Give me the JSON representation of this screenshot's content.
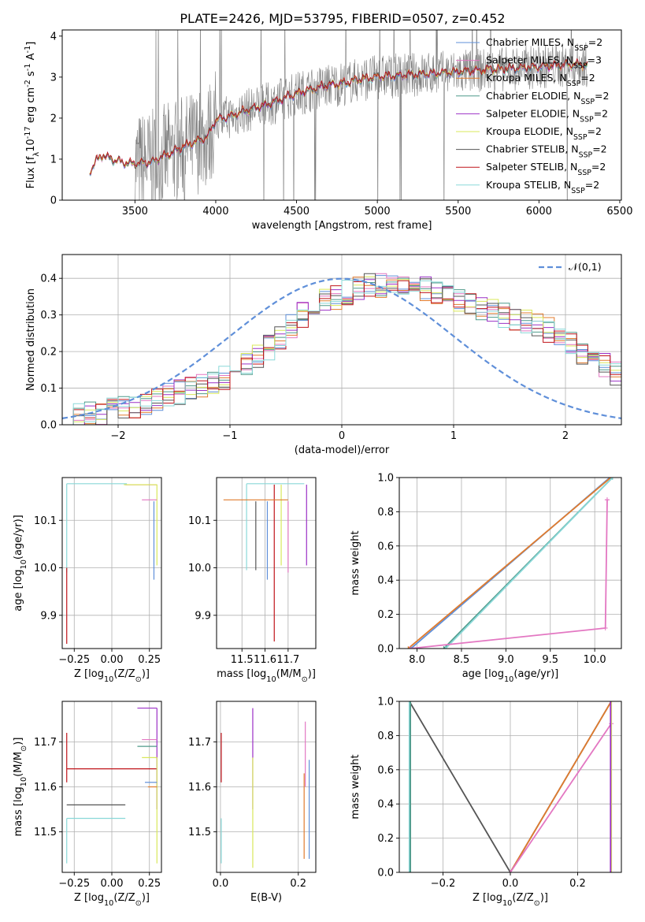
{
  "title": "PLATE=2426, MJD=53795, FIBERID=0507, z=0.452",
  "colors": {
    "chabrier_miles": "#5f8fd9",
    "salpeter_miles": "#e377c2",
    "kroupa_miles": "#e07b2e",
    "chabrier_elodie": "#4f9a8a",
    "salpeter_elodie": "#9b30c6",
    "kroupa_elodie": "#d9e85a",
    "chabrier_stelib": "#555555",
    "salpeter_stelib": "#c0141a",
    "kroupa_stelib": "#8ad8d8",
    "data": "#7f7f7f",
    "normal": "#5f8fd9",
    "grid": "#b0b0b0"
  },
  "chart_data": [
    {
      "id": "spectrum",
      "type": "line",
      "xlabel": "wavelength [Angstrom, rest frame]",
      "ylabel": "Flux [f$_\\lambda$10$^{-17}$ erg cm$^{-2}$ s$^{-1}$ A$^{-1}$]",
      "xlim": [
        3050,
        6510
      ],
      "ylim": [
        0,
        4.15
      ],
      "xticks": [
        3500,
        4000,
        4500,
        5000,
        5500,
        6000,
        6500
      ],
      "yticks": [
        0,
        1,
        2,
        3,
        4
      ],
      "grid": false,
      "legend_position": "top-right",
      "legend": [
        {
          "label": "Chabrier MILES, N$_{SSP}$=2",
          "color": "chabrier_miles"
        },
        {
          "label": "Salpeter MILES, N$_{SSP}$=3",
          "color": "salpeter_miles"
        },
        {
          "label": "Kroupa MILES, N$_{SSP}$=2",
          "color": "kroupa_miles"
        },
        {
          "label": "Chabrier ELODIE, N$_{SSP}$=2",
          "color": "chabrier_elodie"
        },
        {
          "label": "Salpeter ELODIE, N$_{SSP}$=2",
          "color": "salpeter_elodie"
        },
        {
          "label": "Kroupa ELODIE, N$_{SSP}$=2",
          "color": "kroupa_elodie"
        },
        {
          "label": "Chabrier STELIB, N$_{SSP}$=2",
          "color": "chabrier_stelib"
        },
        {
          "label": "Salpeter STELIB, N$_{SSP}$=2",
          "color": "salpeter_stelib"
        },
        {
          "label": "Kroupa STELIB, N$_{SSP}$=2",
          "color": "kroupa_stelib"
        }
      ],
      "model_continuum": {
        "x": [
          3200,
          3220,
          3260,
          3300,
          3350,
          3400,
          3450,
          3500,
          3600,
          3700,
          3800,
          3900,
          3950,
          4000,
          4100,
          4200,
          4300,
          4400,
          4500,
          4600,
          4700,
          4800,
          4900,
          5000,
          5200,
          5400,
          5600,
          5800,
          6000,
          6200,
          6300
        ],
        "y": [
          0.0,
          0.7,
          0.95,
          1.1,
          1.0,
          0.95,
          0.9,
          0.88,
          0.92,
          1.1,
          1.3,
          1.45,
          1.55,
          1.95,
          2.05,
          2.2,
          2.3,
          2.45,
          2.6,
          2.7,
          2.8,
          2.85,
          2.95,
          3.0,
          3.05,
          3.1,
          3.15,
          3.2,
          3.25,
          3.3,
          3.3
        ]
      },
      "data_noise_start": 3500
    },
    {
      "id": "residuals",
      "type": "line",
      "xlabel": "(data-model)/error",
      "ylabel": "Normed distribution",
      "xlim": [
        -2.5,
        2.5
      ],
      "ylim": [
        0,
        0.465
      ],
      "xticks": [
        -2,
        -1,
        0,
        1,
        2
      ],
      "yticks": [
        0.0,
        0.1,
        0.2,
        0.3,
        0.4
      ],
      "grid": true,
      "legend_position": "top-right",
      "legend": [
        {
          "label": "$\\mathcal{N}(0,1)$",
          "color": "normal"
        }
      ],
      "bin_width": 0.1,
      "bin_start": -2.5,
      "histogram_envelope": [
        0.02,
        0.025,
        0.03,
        0.035,
        0.04,
        0.045,
        0.05,
        0.06,
        0.07,
        0.08,
        0.09,
        0.1,
        0.11,
        0.12,
        0.13,
        0.15,
        0.17,
        0.19,
        0.21,
        0.24,
        0.27,
        0.3,
        0.32,
        0.34,
        0.35,
        0.36,
        0.37,
        0.38,
        0.38,
        0.39,
        0.39,
        0.38,
        0.37,
        0.36,
        0.35,
        0.34,
        0.33,
        0.32,
        0.31,
        0.3,
        0.29,
        0.28,
        0.27,
        0.26,
        0.24,
        0.22,
        0.2,
        0.18,
        0.16,
        0.14
      ]
    },
    {
      "id": "age-vs-z",
      "type": "line",
      "xlabel": "Z [log$_{10}$($Z/Z_\\odot$)]",
      "ylabel": "age  [log$_{10}$($age/yr$)]",
      "xlim": [
        -0.33,
        0.33
      ],
      "ylim": [
        9.83,
        10.19
      ],
      "xticks": [
        -0.25,
        0.0,
        0.25
      ],
      "xtick_labels": [
        "−0.25",
        "0.00",
        "0.25"
      ],
      "yticks": [
        9.9,
        10.0,
        10.1
      ],
      "grid": true,
      "series": [
        {
          "color": "kroupa_stelib",
          "segments": [
            [
              -0.3,
              9.99,
              -0.3,
              10.177
            ],
            [
              -0.3,
              10.177,
              0.1,
              10.177
            ]
          ]
        },
        {
          "color": "salpeter_stelib",
          "segments": [
            [
              -0.3,
              9.84,
              -0.3,
              10.0
            ],
            [
              0.09,
              10.175,
              0.3,
              10.175
            ]
          ]
        },
        {
          "color": "kroupa_elodie",
          "segments": [
            [
              0.3,
              10.005,
              0.3,
              10.175
            ],
            [
              0.08,
              10.175,
              0.3,
              10.175
            ]
          ]
        },
        {
          "color": "salpeter_miles",
          "segments": [
            [
              0.2,
              10.143,
              0.3,
              10.143
            ]
          ]
        },
        {
          "color": "chabrier_miles",
          "segments": [
            [
              0.28,
              9.975,
              0.28,
              10.14
            ]
          ]
        }
      ]
    },
    {
      "id": "age-vs-mass",
      "type": "line",
      "xlabel": "mass [log$_{10}$($M/M_\\odot$)]",
      "ylabel": "",
      "xlim": [
        11.39,
        11.82
      ],
      "ylim": [
        9.83,
        10.19
      ],
      "xticks": [
        11.5,
        11.6,
        11.7
      ],
      "yticks": [
        9.9,
        10.0,
        10.1
      ],
      "grid": true,
      "series": [
        {
          "color": "kroupa_stelib",
          "segments": [
            [
              11.52,
              9.995,
              11.52,
              10.177
            ],
            [
              11.52,
              10.177,
              11.77,
              10.177
            ]
          ]
        },
        {
          "color": "chabrier_stelib",
          "segments": [
            [
              11.56,
              9.995,
              11.56,
              10.14
            ]
          ]
        },
        {
          "color": "salpeter_stelib",
          "segments": [
            [
              11.64,
              9.845,
              11.64,
              10.175
            ]
          ]
        },
        {
          "color": "chabrier_miles",
          "segments": [
            [
              11.61,
              9.975,
              11.61,
              10.14
            ]
          ]
        },
        {
          "color": "salpeter_elodie",
          "segments": [
            [
              11.78,
              10.005,
              11.78,
              10.175
            ]
          ]
        },
        {
          "color": "kroupa_elodie",
          "segments": [
            [
              11.67,
              10.005,
              11.67,
              10.175
            ]
          ]
        },
        {
          "color": "salpeter_miles",
          "segments": [
            [
              11.7,
              9.99,
              11.7,
              10.14
            ]
          ]
        },
        {
          "color": "kroupa_miles",
          "segments": [
            [
              11.42,
              10.143,
              11.7,
              10.143
            ]
          ]
        }
      ]
    },
    {
      "id": "weight-vs-age",
      "type": "line",
      "xlabel": "age  [log$_{10}$($age/yr$)]",
      "ylabel": "mass weight",
      "xlim": [
        7.8,
        10.3
      ],
      "ylim": [
        0,
        1
      ],
      "xticks": [
        8.0,
        8.5,
        9.0,
        9.5,
        10.0
      ],
      "yticks": [
        0.0,
        0.2,
        0.4,
        0.6,
        0.8,
        1.0
      ],
      "grid": true,
      "series": [
        {
          "color": "chabrier_miles",
          "x": [
            7.93,
            10.17
          ],
          "y": [
            0.0,
            1.0
          ]
        },
        {
          "color": "kroupa_miles",
          "x": [
            7.9,
            10.18
          ],
          "y": [
            0.0,
            1.0
          ]
        },
        {
          "color": "chabrier_elodie",
          "x": [
            8.3,
            10.2
          ],
          "y": [
            0.0,
            1.0
          ]
        },
        {
          "color": "kroupa_stelib",
          "x": [
            8.32,
            10.2
          ],
          "y": [
            0.0,
            1.0
          ]
        },
        {
          "color": "salpeter_miles",
          "x": [
            7.92,
            10.12,
            10.14,
            10.14
          ],
          "y": [
            0.0,
            0.12,
            0.87,
            0.87
          ]
        }
      ]
    },
    {
      "id": "mass-vs-z",
      "type": "line",
      "xlabel": "Z [log$_{10}$($Z/Z_\\odot$)]",
      "ylabel": "mass [log$_{10}$($M/M_\\odot$)]",
      "xlim": [
        -0.33,
        0.33
      ],
      "ylim": [
        11.41,
        11.79
      ],
      "xticks": [
        -0.25,
        0.0,
        0.25
      ],
      "xtick_labels": [
        "−0.25",
        "0.00",
        "0.25"
      ],
      "yticks": [
        11.5,
        11.6,
        11.7
      ],
      "grid": true,
      "series": [
        {
          "color": "salpeter_stelib",
          "segments": [
            [
              -0.3,
              11.61,
              -0.3,
              11.72
            ],
            [
              -0.3,
              11.64,
              0.3,
              11.64
            ]
          ]
        },
        {
          "color": "chabrier_stelib",
          "segments": [
            [
              -0.3,
              11.56,
              0.09,
              11.56
            ]
          ]
        },
        {
          "color": "kroupa_stelib",
          "segments": [
            [
              -0.3,
              11.43,
              -0.3,
              11.53
            ],
            [
              -0.3,
              11.53,
              0.09,
              11.53
            ]
          ]
        },
        {
          "color": "salpeter_elodie",
          "segments": [
            [
              0.17,
              11.775,
              0.3,
              11.775
            ],
            [
              0.3,
              11.55,
              0.3,
              11.775
            ]
          ]
        },
        {
          "color": "salpeter_miles",
          "segments": [
            [
              0.2,
              11.705,
              0.3,
              11.705
            ]
          ]
        },
        {
          "color": "chabrier_elodie",
          "segments": [
            [
              0.17,
              11.69,
              0.3,
              11.69
            ]
          ]
        },
        {
          "color": "kroupa_elodie",
          "segments": [
            [
              0.2,
              11.665,
              0.3,
              11.665
            ],
            [
              0.3,
              11.43,
              0.3,
              11.665
            ]
          ]
        },
        {
          "color": "chabrier_miles",
          "segments": [
            [
              0.22,
              11.61,
              0.3,
              11.61
            ]
          ]
        },
        {
          "color": "kroupa_miles",
          "segments": [
            [
              0.24,
              11.6,
              0.3,
              11.6
            ]
          ]
        }
      ]
    },
    {
      "id": "mass-vs-ebv",
      "type": "line",
      "xlabel": "E(B-V)",
      "ylabel": "",
      "xlim": [
        -0.01,
        0.245
      ],
      "ylim": [
        11.41,
        11.79
      ],
      "xticks": [
        0.0,
        0.2
      ],
      "yticks": [
        11.5,
        11.6,
        11.7
      ],
      "grid": true,
      "series": [
        {
          "color": "salpeter_stelib",
          "segments": [
            [
              0.002,
              11.61,
              0.002,
              11.72
            ]
          ]
        },
        {
          "color": "kroupa_stelib",
          "segments": [
            [
              0.002,
              11.43,
              0.002,
              11.53
            ]
          ]
        },
        {
          "color": "salpeter_elodie",
          "segments": [
            [
              0.083,
              11.55,
              0.083,
              11.775
            ]
          ]
        },
        {
          "color": "kroupa_elodie",
          "segments": [
            [
              0.083,
              11.42,
              0.083,
              11.665
            ]
          ]
        },
        {
          "color": "salpeter_miles",
          "segments": [
            [
              0.218,
              11.6,
              0.218,
              11.745
            ]
          ]
        },
        {
          "color": "kroupa_miles",
          "segments": [
            [
              0.215,
              11.44,
              0.215,
              11.63
            ]
          ]
        },
        {
          "color": "chabrier_miles",
          "segments": [
            [
              0.228,
              11.44,
              0.228,
              11.66
            ]
          ]
        }
      ]
    },
    {
      "id": "weight-vs-z",
      "type": "line",
      "xlabel": "Z [log$_{10}$($Z/Z_\\odot$)]",
      "ylabel": "mass weight",
      "xlim": [
        -0.33,
        0.33
      ],
      "ylim": [
        0,
        1
      ],
      "xticks": [
        -0.2,
        0.0,
        0.2
      ],
      "xtick_labels": [
        "−0.2",
        "0.0",
        "0.2"
      ],
      "yticks": [
        0.0,
        0.2,
        0.4,
        0.6,
        0.8,
        1.0
      ],
      "grid": true,
      "series": [
        {
          "color": "chabrier_stelib",
          "x": [
            -0.3,
            0.0,
            0.3
          ],
          "y": [
            1.0,
            0.0,
            1.0
          ]
        },
        {
          "color": "kroupa_miles",
          "x": [
            0.0,
            0.3
          ],
          "y": [
            0.0,
            1.0
          ]
        },
        {
          "color": "salpeter_miles",
          "x": [
            0.0,
            0.3
          ],
          "y": [
            0.0,
            0.87
          ]
        },
        {
          "color": "kroupa_stelib",
          "x": [
            -0.3,
            -0.3
          ],
          "y": [
            0.0,
            1.0
          ]
        },
        {
          "color": "chabrier_elodie",
          "x": [
            -0.297,
            -0.297
          ],
          "y": [
            0.0,
            1.0
          ]
        },
        {
          "color": "kroupa_elodie",
          "x": [
            0.3,
            0.3
          ],
          "y": [
            0.0,
            1.0
          ]
        },
        {
          "color": "salpeter_elodie",
          "x": [
            0.298,
            0.298
          ],
          "y": [
            0.0,
            1.0
          ]
        }
      ]
    }
  ]
}
